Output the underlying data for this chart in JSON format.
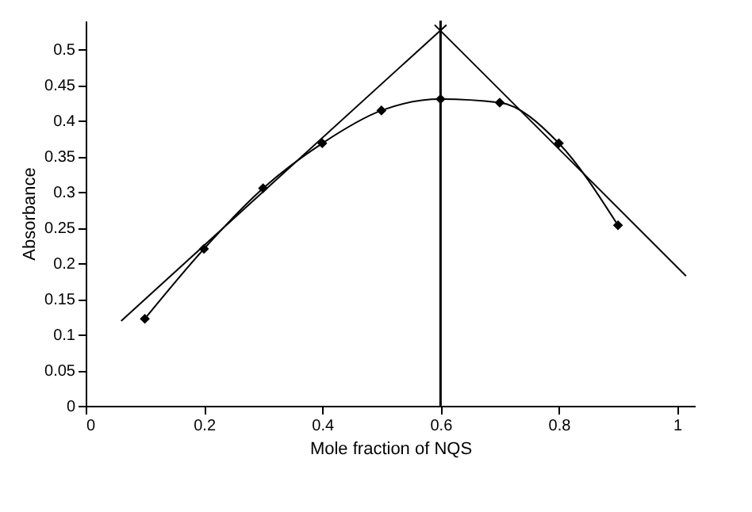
{
  "chart_data": {
    "type": "line",
    "xlabel": "Mole fraction of NQS",
    "ylabel": "Absorbance",
    "xlim": [
      0,
      1.03
    ],
    "ylim": [
      0,
      0.54
    ],
    "xticks": [
      0,
      0.2,
      0.4,
      0.6,
      0.8,
      1
    ],
    "yticks": [
      0,
      0.05,
      0.1,
      0.15,
      0.2,
      0.25,
      0.3,
      0.35,
      0.4,
      0.45,
      0.5
    ],
    "grid": false,
    "series": [
      {
        "color": "#000000",
        "marker": "diamond",
        "line_style": "solid",
        "x": [
          0.1,
          0.2,
          0.3,
          0.4,
          0.5,
          0.6,
          0.7,
          0.8,
          0.9
        ],
        "values": [
          0.122,
          0.22,
          0.305,
          0.368,
          0.414,
          0.43,
          0.425,
          0.368,
          0.253
        ]
      },
      {
        "color": "#000000",
        "marker": "none",
        "line_style": "solid",
        "x": [
          0.06,
          0.61
        ],
        "values": [
          0.119,
          0.534
        ]
      },
      {
        "color": "#000000",
        "marker": "none",
        "line_style": "solid",
        "x": [
          0.59,
          1.015
        ],
        "values": [
          0.534,
          0.182
        ]
      }
    ],
    "ref_lines": [
      {
        "axis": "x",
        "value": 0.6,
        "label": null,
        "color": "#000000",
        "line_style": "solid"
      }
    ]
  }
}
